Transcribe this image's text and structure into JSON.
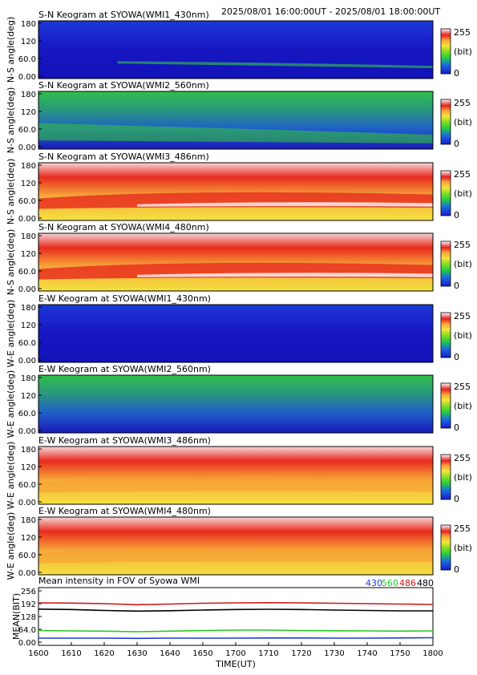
{
  "header": {
    "time_range": "2025/08/01 16:00:00UT - 2025/08/01 18:00:00UT"
  },
  "keograms": [
    {
      "title": "S-N Keogram at SYOWA(WMI1_430nm)",
      "ylabel": "N-S angle(deg)",
      "yticks": [
        "180",
        "120",
        "60.0",
        "0.00"
      ],
      "level": "low",
      "feature": "thin green band low, brighter toward end"
    },
    {
      "title": "S-N Keogram at SYOWA(WMI2_560nm)",
      "ylabel": "N-S angle(deg)",
      "yticks": [
        "180",
        "120",
        "60.0",
        "0.00"
      ],
      "level": "mid-low",
      "feature": "green band near bottom"
    },
    {
      "title": "S-N Keogram at SYOWA(WMI3_486nm)",
      "ylabel": "N-S angle(deg)",
      "yticks": [
        "180",
        "120",
        "60.0",
        "0.00"
      ],
      "level": "high",
      "feature": "red-white band near 30-60 deg"
    },
    {
      "title": "S-N Keogram at SYOWA(WMI4_480nm)",
      "ylabel": "N-S angle(deg)",
      "yticks": [
        "180",
        "120",
        "60.0",
        "0.00"
      ],
      "level": "high",
      "feature": "red-white band near 30-60 deg"
    },
    {
      "title": "E-W Keogram at SYOWA(WMI1_430nm)",
      "ylabel": "W-E angle(deg)",
      "yticks": [
        "180",
        "120",
        "60.0",
        "0.00"
      ],
      "level": "low",
      "feature": "uniform blue"
    },
    {
      "title": "E-W Keogram at SYOWA(WMI2_560nm)",
      "ylabel": "W-E angle(deg)",
      "yticks": [
        "180",
        "120",
        "60.0",
        "0.00"
      ],
      "level": "mid-low",
      "feature": "blue-green"
    },
    {
      "title": "E-W Keogram at SYOWA(WMI3_486nm)",
      "ylabel": "W-E angle(deg)",
      "yticks": [
        "180",
        "120",
        "60.0",
        "0.00"
      ],
      "level": "high",
      "feature": "orange-red upper, yellow lower"
    },
    {
      "title": "E-W Keogram at SYOWA(WMI4_480nm)",
      "ylabel": "W-E angle(deg)",
      "yticks": [
        "180",
        "120",
        "60.0",
        "0.00"
      ],
      "level": "high",
      "feature": "yellow-orange"
    }
  ],
  "colorbar": {
    "max_label": "255",
    "unit_label": "(bit)",
    "min_label": "0"
  },
  "chart_data": {
    "type": "line",
    "title": "Mean intensity in FOV of Syowa WMI",
    "xlabel": "TIME(UT)",
    "ylabel": "MEAN(BIT)",
    "x_ticks": [
      "1600",
      "1610",
      "1620",
      "1630",
      "1640",
      "1650",
      "1700",
      "1710",
      "1720",
      "1730",
      "1740",
      "1750",
      "1800"
    ],
    "y_ticks": [
      "256",
      "192",
      "128",
      "64.0",
      "0.00"
    ],
    "ylim": [
      0,
      256
    ],
    "x": [
      0,
      10,
      20,
      30,
      40,
      50,
      60,
      70,
      80,
      90,
      100,
      110,
      120
    ],
    "series": [
      {
        "name": "430",
        "color": "#1c3ad6",
        "values": [
          20,
          20,
          20,
          19,
          20,
          20,
          20,
          21,
          21,
          20,
          20,
          21,
          22
        ]
      },
      {
        "name": "560",
        "color": "#22cc22",
        "values": [
          58,
          56,
          55,
          52,
          55,
          58,
          60,
          60,
          58,
          57,
          56,
          55,
          56
        ]
      },
      {
        "name": "486",
        "color": "#cc1a1a",
        "values": [
          196,
          195,
          192,
          187,
          190,
          194,
          196,
          197,
          196,
          194,
          192,
          190,
          188
        ]
      },
      {
        "name": "480",
        "color": "#000000",
        "values": [
          165,
          163,
          158,
          155,
          157,
          160,
          163,
          164,
          163,
          160,
          158,
          156,
          156
        ]
      }
    ]
  }
}
